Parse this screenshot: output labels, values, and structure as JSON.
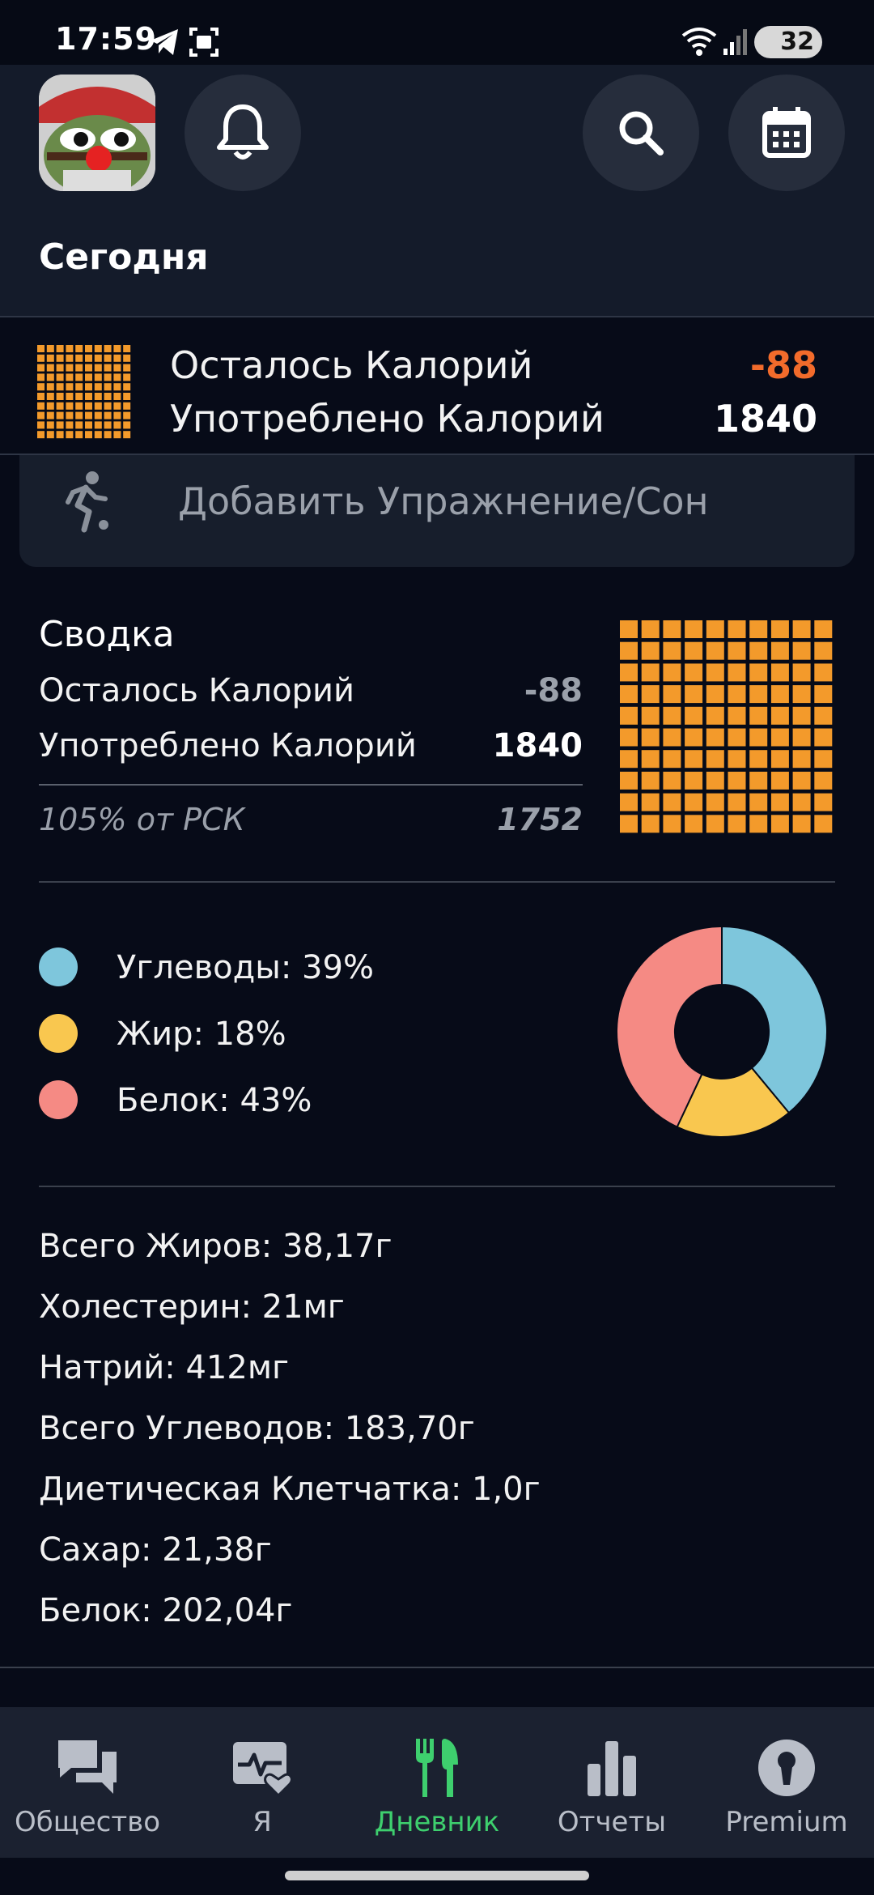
{
  "status_bar": {
    "time": "17:59",
    "battery": "32"
  },
  "header": {
    "title": "Сегодня"
  },
  "calories": {
    "remaining_label": "Осталось Калорий",
    "remaining_value": "-88",
    "consumed_label": "Употреблено Калорий",
    "consumed_value": "1840"
  },
  "add_exercise": {
    "label": "Добавить Упражнение/Сон"
  },
  "summary": {
    "title": "Сводка",
    "remaining_label": "Осталось Калорий",
    "remaining_value": "-88",
    "consumed_label": "Употреблено Калорий",
    "consumed_value": "1840",
    "rsk_label": "105% от РСК",
    "rsk_value": "1752"
  },
  "macros": {
    "items": [
      {
        "label": "Углеводы: 39%",
        "percent": 39,
        "color": "#7ec6dc"
      },
      {
        "label": "Жир: 18%",
        "percent": 18,
        "color": "#f9c74f"
      },
      {
        "label": "Белок: 43%",
        "percent": 43,
        "color": "#f58a84"
      }
    ]
  },
  "nutrients": [
    "Всего Жиров: 38,17г",
    "Холестерин: 21мг",
    "Натрий: 412мг",
    "Всего Углеводов: 183,70г",
    "Диетическая Клетчатка: 1,0г",
    "Сахар: 21,38г",
    "Белок: 202,04г"
  ],
  "nav": [
    {
      "label": "Общество",
      "icon": "chat-icon"
    },
    {
      "label": "Я",
      "icon": "health-icon"
    },
    {
      "label": "Дневник",
      "icon": "fork-knife-icon",
      "active": true
    },
    {
      "label": "Отчеты",
      "icon": "bar-chart-icon"
    },
    {
      "label": "Premium",
      "icon": "premium-icon"
    }
  ],
  "colors": {
    "accent_orange": "#f39a2b",
    "negative": "#f26b2b",
    "active_nav": "#3ecf6e"
  }
}
